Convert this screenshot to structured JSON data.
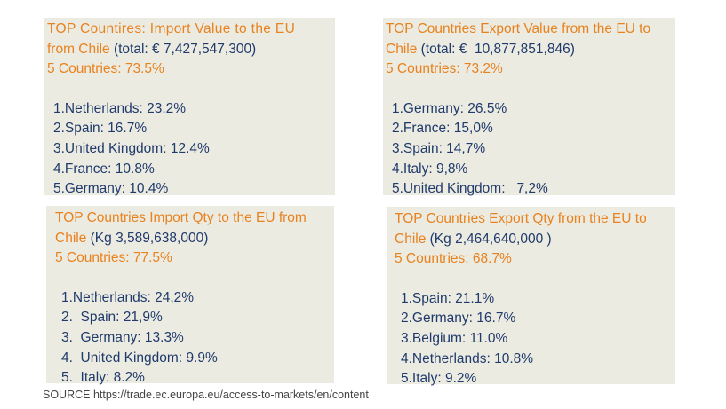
{
  "panels": [
    {
      "title_line1": "TOP Countires: Import Value to the EU",
      "title_line2_orange": "from Chile ",
      "title_line2_navy": "(total: € 7,427,547,300)",
      "subtitle": "5 Countries: 73.5%",
      "items": [
        "1.Netherlands: 23.2%",
        "2.Spain: 16.7%",
        "3.United Kingdom: 12.4%",
        "4.France: 10.8%",
        "5.Germany: 10.4%"
      ]
    },
    {
      "title_line1": "TOP Countries Export Value from the EU to",
      "title_line2_orange": "Chile ",
      "title_line2_navy": "(total: €  10,877,851,846)",
      "subtitle": "5 Countries: 73.2%",
      "items": [
        "1.Germany: 26.5%",
        "2.France: 15,0%",
        "3.Spain: 14,7%",
        "4.Italy: 9,8%",
        "5.United Kingdom:   7,2%"
      ]
    },
    {
      "title_line1": "TOP Countries Import Qty to the EU from",
      "title_line2_orange": "Chile ",
      "title_line2_navy": "(Kg 3,589,638,000)",
      "subtitle": "5 Countries: 77.5%",
      "items": [
        "1.Netherlands: 24,2%",
        "2.  Spain: 21,9%",
        "3.  Germany: 13.3%",
        "4.  United Kingdom: 9.9%",
        "5.  Italy: 8.2%"
      ]
    },
    {
      "title_line1": "TOP Countries Export Qty from the EU to",
      "title_line2_orange": "Chile ",
      "title_line2_navy": "(Kg 2,464,640,000 )",
      "subtitle": "5 Countries: 68.7%",
      "items": [
        "1.Spain: 21.1%",
        "2.Germany: 16.7%",
        "3.Belgium: 11.0%",
        "4.Netherlands: 10.8%",
        "5.Italy: 9.2%"
      ]
    }
  ],
  "source": "SOURCE https://trade.ec.europa.eu/access-to-markets/en/content",
  "colors": {
    "orange": "#e8821e",
    "navy": "#1f3a6b",
    "panel_bg": "#ecebe2"
  }
}
